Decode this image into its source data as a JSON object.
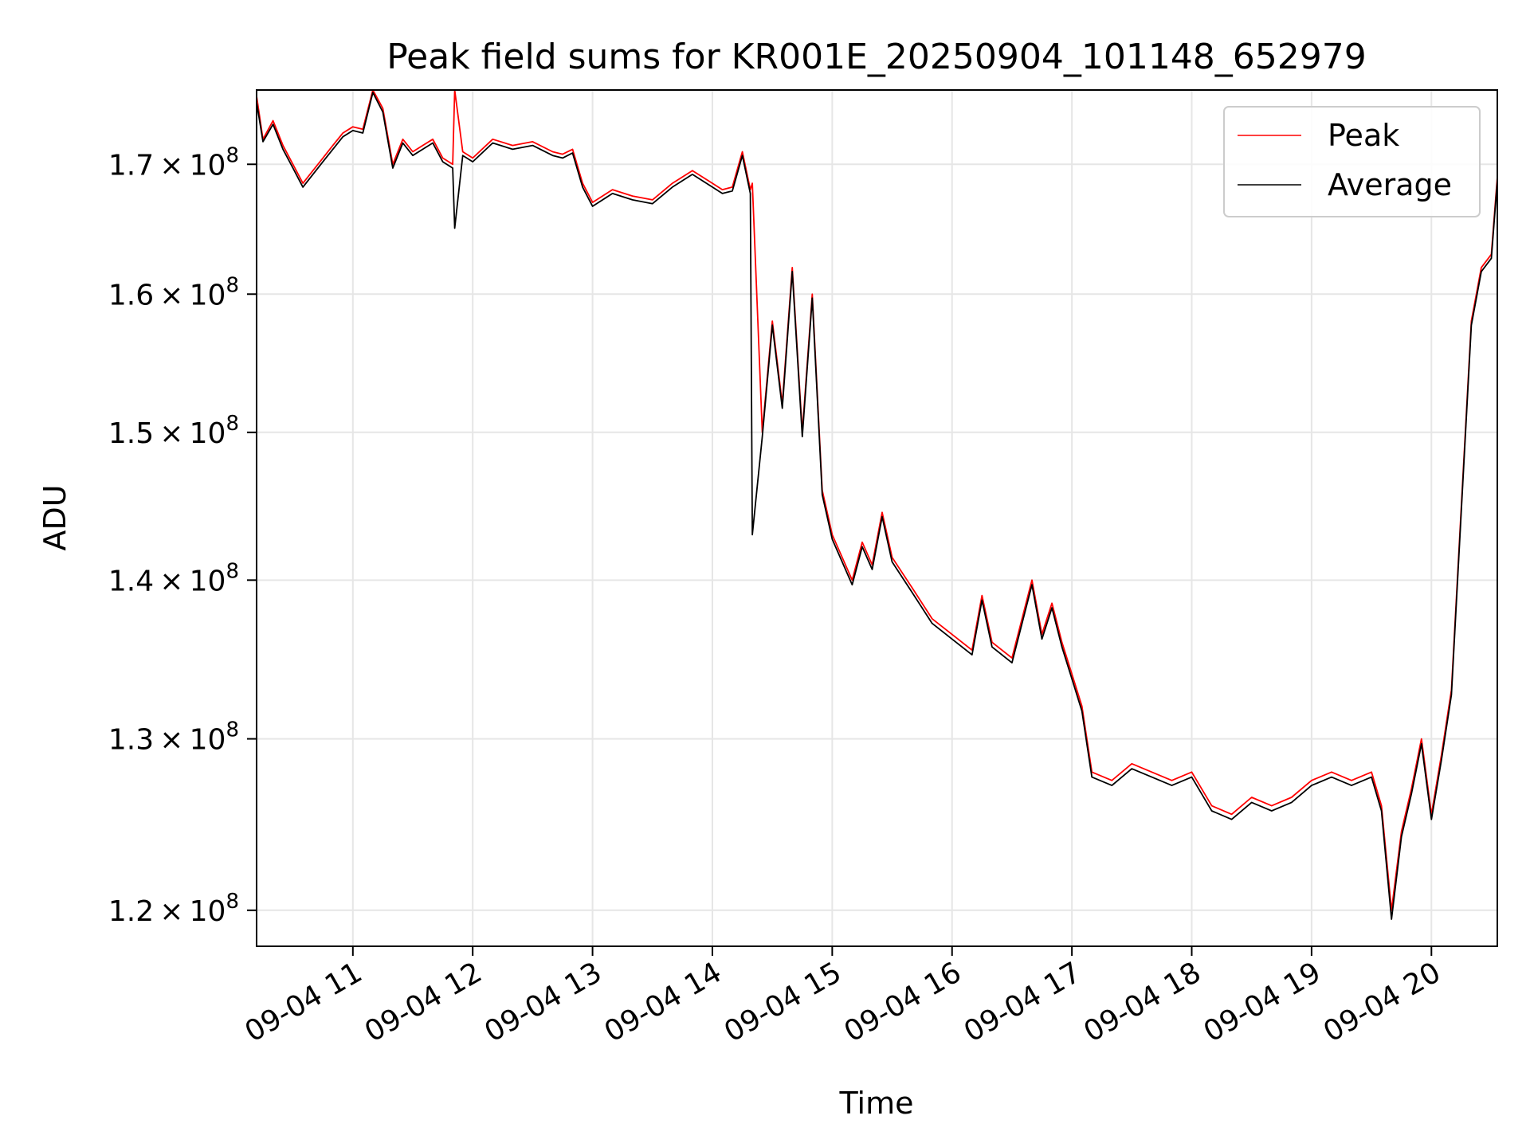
{
  "chart_data": {
    "type": "line",
    "title": "Peak field sums for KR001E_20250904_101148_652979",
    "xlabel": "Time",
    "ylabel": "ADU",
    "y_scale": "log",
    "grid": true,
    "legend_placement": "top-right",
    "xlim": [
      "2025-09-04 10:11:48",
      "2025-09-04 20:33:00"
    ],
    "ylim": [
      118000000,
      176000000
    ],
    "x_ticks": [
      {
        "value": "2025-09-04 11:00",
        "label": "09-04 11"
      },
      {
        "value": "2025-09-04 12:00",
        "label": "09-04 12"
      },
      {
        "value": "2025-09-04 13:00",
        "label": "09-04 13"
      },
      {
        "value": "2025-09-04 14:00",
        "label": "09-04 14"
      },
      {
        "value": "2025-09-04 15:00",
        "label": "09-04 15"
      },
      {
        "value": "2025-09-04 16:00",
        "label": "09-04 16"
      },
      {
        "value": "2025-09-04 17:00",
        "label": "09-04 17"
      },
      {
        "value": "2025-09-04 18:00",
        "label": "09-04 18"
      },
      {
        "value": "2025-09-04 19:00",
        "label": "09-04 19"
      },
      {
        "value": "2025-09-04 20:00",
        "label": "09-04 20"
      }
    ],
    "y_ticks": [
      {
        "value": 120000000,
        "mantissa": "1.2",
        "base": "10",
        "exp": "8"
      },
      {
        "value": 130000000,
        "mantissa": "1.3",
        "base": "10",
        "exp": "8"
      },
      {
        "value": 140000000,
        "mantissa": "1.4",
        "base": "10",
        "exp": "8"
      },
      {
        "value": 150000000,
        "mantissa": "1.5",
        "base": "10",
        "exp": "8"
      },
      {
        "value": 160000000,
        "mantissa": "1.6",
        "base": "10",
        "exp": "8"
      },
      {
        "value": 170000000,
        "mantissa": "1.7",
        "base": "10",
        "exp": "8"
      }
    ],
    "series": [
      {
        "name": "Peak",
        "color": "#ff0000",
        "x": [
          "2025-09-04 10:11:48",
          "2025-09-04 10:15",
          "2025-09-04 10:20",
          "2025-09-04 10:25",
          "2025-09-04 10:30",
          "2025-09-04 10:35",
          "2025-09-04 10:40",
          "2025-09-04 10:45",
          "2025-09-04 10:50",
          "2025-09-04 10:55",
          "2025-09-04 11:00",
          "2025-09-04 11:05",
          "2025-09-04 11:10",
          "2025-09-04 11:15",
          "2025-09-04 11:20",
          "2025-09-04 11:25",
          "2025-09-04 11:30",
          "2025-09-04 11:35",
          "2025-09-04 11:40",
          "2025-09-04 11:45",
          "2025-09-04 11:50",
          "2025-09-04 11:51",
          "2025-09-04 11:55",
          "2025-09-04 12:00",
          "2025-09-04 12:10",
          "2025-09-04 12:20",
          "2025-09-04 12:30",
          "2025-09-04 12:40",
          "2025-09-04 12:45",
          "2025-09-04 12:50",
          "2025-09-04 12:55",
          "2025-09-04 13:00",
          "2025-09-04 13:10",
          "2025-09-04 13:20",
          "2025-09-04 13:30",
          "2025-09-04 13:40",
          "2025-09-04 13:50",
          "2025-09-04 14:00",
          "2025-09-04 14:05",
          "2025-09-04 14:10",
          "2025-09-04 14:15",
          "2025-09-04 14:19",
          "2025-09-04 14:20",
          "2025-09-04 14:25",
          "2025-09-04 14:30",
          "2025-09-04 14:35",
          "2025-09-04 14:40",
          "2025-09-04 14:45",
          "2025-09-04 14:50",
          "2025-09-04 14:55",
          "2025-09-04 15:00",
          "2025-09-04 15:10",
          "2025-09-04 15:15",
          "2025-09-04 15:20",
          "2025-09-04 15:25",
          "2025-09-04 15:30",
          "2025-09-04 15:40",
          "2025-09-04 15:50",
          "2025-09-04 16:00",
          "2025-09-04 16:10",
          "2025-09-04 16:15",
          "2025-09-04 16:20",
          "2025-09-04 16:30",
          "2025-09-04 16:40",
          "2025-09-04 16:45",
          "2025-09-04 16:50",
          "2025-09-04 16:55",
          "2025-09-04 17:00",
          "2025-09-04 17:05",
          "2025-09-04 17:10",
          "2025-09-04 17:20",
          "2025-09-04 17:30",
          "2025-09-04 17:40",
          "2025-09-04 17:50",
          "2025-09-04 18:00",
          "2025-09-04 18:10",
          "2025-09-04 18:20",
          "2025-09-04 18:30",
          "2025-09-04 18:40",
          "2025-09-04 18:50",
          "2025-09-04 19:00",
          "2025-09-04 19:10",
          "2025-09-04 19:20",
          "2025-09-04 19:30",
          "2025-09-04 19:35",
          "2025-09-04 19:40",
          "2025-09-04 19:45",
          "2025-09-04 19:50",
          "2025-09-04 19:55",
          "2025-09-04 20:00",
          "2025-09-04 20:05",
          "2025-09-04 20:10",
          "2025-09-04 20:15",
          "2025-09-04 20:20",
          "2025-09-04 20:25",
          "2025-09-04 20:30",
          "2025-09-04 20:33"
        ],
        "values": [
          175500000,
          172000000,
          173500000,
          171500000,
          170000000,
          168500000,
          169500000,
          170500000,
          171500000,
          172500000,
          173000000,
          172800000,
          176000000,
          174500000,
          170000000,
          172000000,
          171000000,
          171500000,
          172000000,
          170500000,
          170000000,
          176000000,
          171000000,
          170500000,
          172000000,
          171500000,
          171800000,
          171000000,
          170800000,
          171200000,
          168500000,
          167000000,
          168000000,
          167500000,
          167200000,
          168500000,
          169500000,
          168500000,
          168000000,
          168200000,
          171000000,
          168000000,
          168500000,
          150000000,
          158000000,
          152000000,
          162000000,
          150000000,
          160000000,
          146000000,
          143000000,
          140000000,
          142500000,
          141000000,
          144500000,
          141500000,
          139500000,
          137500000,
          136500000,
          135500000,
          139000000,
          136000000,
          135000000,
          140000000,
          136500000,
          138500000,
          136000000,
          134000000,
          132000000,
          128000000,
          127500000,
          128500000,
          128000000,
          127500000,
          128000000,
          126000000,
          125500000,
          126500000,
          126000000,
          126500000,
          127500000,
          128000000,
          127500000,
          128000000,
          126000000,
          120000000,
          124500000,
          127000000,
          130000000,
          125500000,
          129000000,
          133000000,
          145000000,
          158000000,
          162000000,
          163000000,
          169000000
        ]
      },
      {
        "name": "Average",
        "color": "#000000",
        "x": [
          "2025-09-04 10:11:48",
          "2025-09-04 10:15",
          "2025-09-04 10:20",
          "2025-09-04 10:25",
          "2025-09-04 10:30",
          "2025-09-04 10:35",
          "2025-09-04 10:40",
          "2025-09-04 10:45",
          "2025-09-04 10:50",
          "2025-09-04 10:55",
          "2025-09-04 11:00",
          "2025-09-04 11:05",
          "2025-09-04 11:10",
          "2025-09-04 11:15",
          "2025-09-04 11:20",
          "2025-09-04 11:25",
          "2025-09-04 11:30",
          "2025-09-04 11:35",
          "2025-09-04 11:40",
          "2025-09-04 11:45",
          "2025-09-04 11:50",
          "2025-09-04 11:51",
          "2025-09-04 11:55",
          "2025-09-04 12:00",
          "2025-09-04 12:10",
          "2025-09-04 12:20",
          "2025-09-04 12:30",
          "2025-09-04 12:40",
          "2025-09-04 12:45",
          "2025-09-04 12:50",
          "2025-09-04 12:55",
          "2025-09-04 13:00",
          "2025-09-04 13:10",
          "2025-09-04 13:20",
          "2025-09-04 13:30",
          "2025-09-04 13:40",
          "2025-09-04 13:50",
          "2025-09-04 14:00",
          "2025-09-04 14:05",
          "2025-09-04 14:10",
          "2025-09-04 14:15",
          "2025-09-04 14:19",
          "2025-09-04 14:20",
          "2025-09-04 14:25",
          "2025-09-04 14:30",
          "2025-09-04 14:35",
          "2025-09-04 14:40",
          "2025-09-04 14:45",
          "2025-09-04 14:50",
          "2025-09-04 14:55",
          "2025-09-04 15:00",
          "2025-09-04 15:10",
          "2025-09-04 15:15",
          "2025-09-04 15:20",
          "2025-09-04 15:25",
          "2025-09-04 15:30",
          "2025-09-04 15:40",
          "2025-09-04 15:50",
          "2025-09-04 16:00",
          "2025-09-04 16:10",
          "2025-09-04 16:15",
          "2025-09-04 16:20",
          "2025-09-04 16:30",
          "2025-09-04 16:40",
          "2025-09-04 16:45",
          "2025-09-04 16:50",
          "2025-09-04 16:55",
          "2025-09-04 17:00",
          "2025-09-04 17:05",
          "2025-09-04 17:10",
          "2025-09-04 17:20",
          "2025-09-04 17:30",
          "2025-09-04 17:40",
          "2025-09-04 17:50",
          "2025-09-04 18:00",
          "2025-09-04 18:10",
          "2025-09-04 18:20",
          "2025-09-04 18:30",
          "2025-09-04 18:40",
          "2025-09-04 18:50",
          "2025-09-04 19:00",
          "2025-09-04 19:10",
          "2025-09-04 19:20",
          "2025-09-04 19:30",
          "2025-09-04 19:35",
          "2025-09-04 19:40",
          "2025-09-04 19:45",
          "2025-09-04 19:50",
          "2025-09-04 19:55",
          "2025-09-04 20:00",
          "2025-09-04 20:05",
          "2025-09-04 20:10",
          "2025-09-04 20:15",
          "2025-09-04 20:20",
          "2025-09-04 20:25",
          "2025-09-04 20:30",
          "2025-09-04 20:33"
        ],
        "values": [
          175000000,
          171800000,
          173200000,
          171200000,
          169700000,
          168200000,
          169200000,
          170200000,
          171200000,
          172200000,
          172700000,
          172500000,
          175800000,
          174200000,
          169700000,
          171700000,
          170700000,
          171200000,
          171700000,
          170200000,
          169700000,
          165000000,
          170700000,
          170200000,
          171700000,
          171200000,
          171500000,
          170700000,
          170500000,
          170900000,
          168200000,
          166700000,
          167700000,
          167200000,
          166900000,
          168200000,
          169200000,
          168200000,
          167700000,
          167900000,
          170700000,
          167700000,
          143000000,
          149700000,
          157700000,
          151700000,
          161700000,
          149700000,
          159700000,
          145700000,
          142700000,
          139700000,
          142200000,
          140700000,
          144200000,
          141200000,
          139200000,
          137200000,
          136200000,
          135200000,
          138700000,
          135700000,
          134700000,
          139700000,
          136200000,
          138200000,
          135700000,
          133700000,
          131700000,
          127700000,
          127200000,
          128200000,
          127700000,
          127200000,
          127700000,
          125700000,
          125200000,
          126200000,
          125700000,
          126200000,
          127200000,
          127700000,
          127200000,
          127700000,
          125700000,
          119500000,
          124200000,
          126700000,
          129700000,
          125200000,
          128700000,
          132700000,
          144700000,
          157700000,
          161700000,
          162700000,
          168700000
        ]
      }
    ]
  }
}
